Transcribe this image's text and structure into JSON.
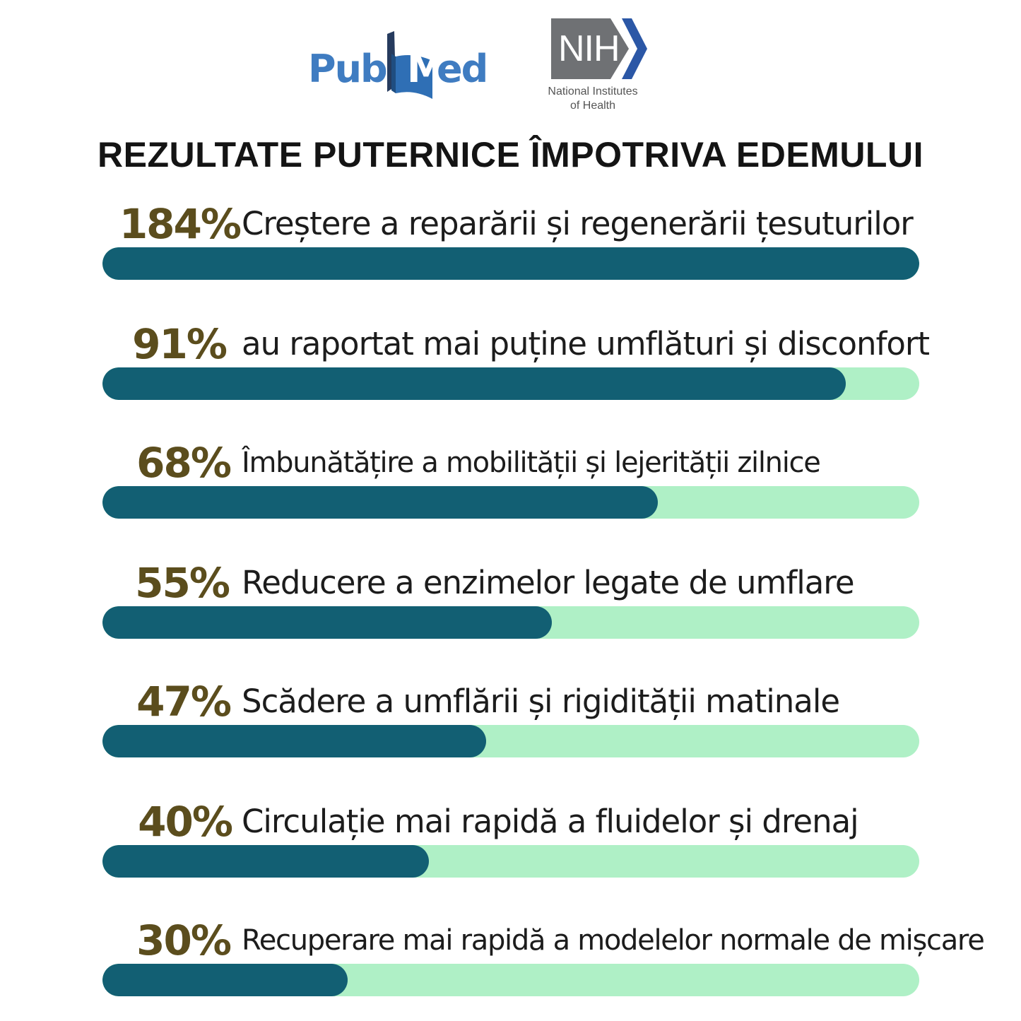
{
  "logos": {
    "pubmed_text": "PubMed",
    "nih_text": "NIH",
    "nih_caption_line1": "National Institutes",
    "nih_caption_line2": "of Health"
  },
  "colors": {
    "bar_fill": "#125f73",
    "bar_track": "#aff0c6",
    "percent_text": "#5b4d1d",
    "pubmed_blue": "#3f7cc1"
  },
  "chart_data": {
    "type": "bar",
    "orientation": "horizontal",
    "title": "REZULTATE PUTERNICE ÎMPOTRIVA EDEMULUI",
    "xlim": [
      0,
      100
    ],
    "grid": false,
    "items": [
      {
        "percent_label": "184%",
        "label": "Creștere a reparării și regenerării țesuturilor",
        "value": 184
      },
      {
        "percent_label": "91%",
        "label": "au raportat mai puține umflături și disconfort",
        "value": 91
      },
      {
        "percent_label": "68%",
        "label": "Îmbunătățire a mobilității și lejerității zilnice",
        "value": 68
      },
      {
        "percent_label": "55%",
        "label": "Reducere a enzimelor legate de umflare",
        "value": 55
      },
      {
        "percent_label": "47%",
        "label": "Scădere a umflării și rigidității matinale",
        "value": 47
      },
      {
        "percent_label": "40%",
        "label": "Circulație mai rapidă a fluidelor și drenaj",
        "value": 40
      },
      {
        "percent_label": "30%",
        "label": "Recuperare mai rapidă a modelelor normale de mișcare",
        "value": 30
      }
    ]
  }
}
